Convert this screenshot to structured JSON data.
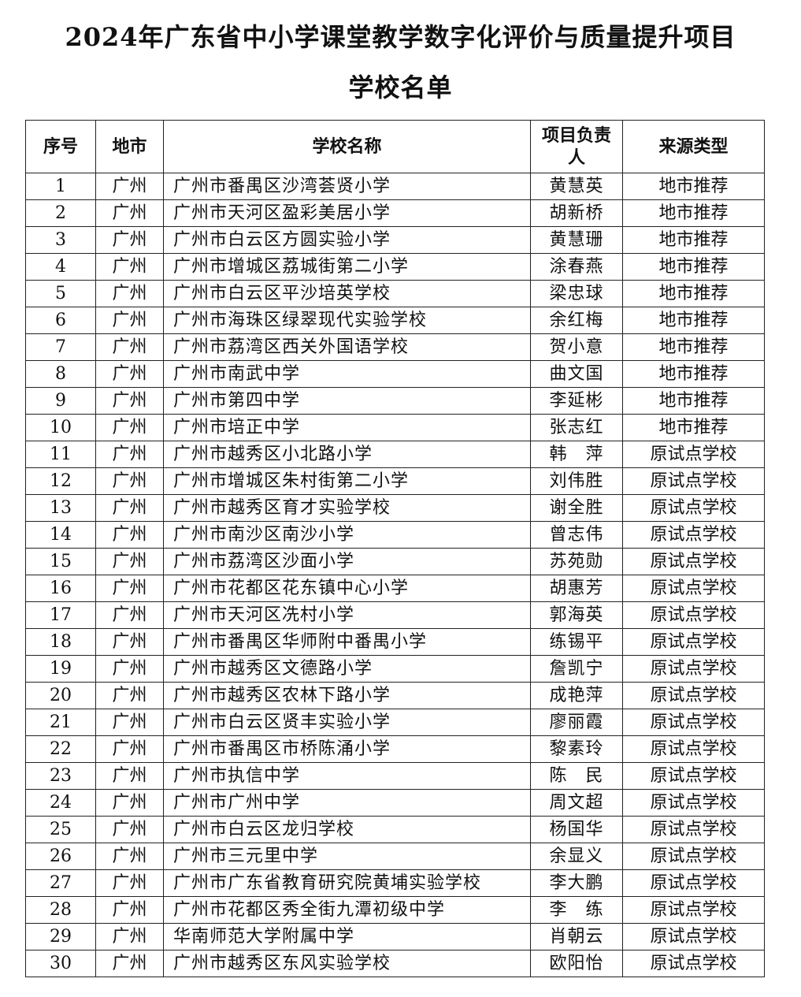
{
  "title": {
    "line1": "2024年广东省中小学课堂教学数字化评价与质量提升项目",
    "line2": "学校名单"
  },
  "table": {
    "headers": [
      "序号",
      "地市",
      "学校名称",
      "项目负责人",
      "来源类型"
    ],
    "rows": [
      [
        "1",
        "广州",
        "广州市番禺区沙湾荟贤小学",
        "黄慧英",
        "地市推荐"
      ],
      [
        "2",
        "广州",
        "广州市天河区盈彩美居小学",
        "胡新桥",
        "地市推荐"
      ],
      [
        "3",
        "广州",
        "广州市白云区方圆实验小学",
        "黄慧珊",
        "地市推荐"
      ],
      [
        "4",
        "广州",
        "广州市增城区荔城街第二小学",
        "涂春燕",
        "地市推荐"
      ],
      [
        "5",
        "广州",
        "广州市白云区平沙培英学校",
        "梁忠球",
        "地市推荐"
      ],
      [
        "6",
        "广州",
        "广州市海珠区绿翠现代实验学校",
        "余红梅",
        "地市推荐"
      ],
      [
        "7",
        "广州",
        "广州市荔湾区西关外国语学校",
        "贺小意",
        "地市推荐"
      ],
      [
        "8",
        "广州",
        "广州市南武中学",
        "曲文国",
        "地市推荐"
      ],
      [
        "9",
        "广州",
        "广州市第四中学",
        "李延彬",
        "地市推荐"
      ],
      [
        "10",
        "广州",
        "广州市培正中学",
        "张志红",
        "地市推荐"
      ],
      [
        "11",
        "广州",
        "广州市越秀区小北路小学",
        "韩　萍",
        "原试点学校"
      ],
      [
        "12",
        "广州",
        "广州市增城区朱村街第二小学",
        "刘伟胜",
        "原试点学校"
      ],
      [
        "13",
        "广州",
        "广州市越秀区育才实验学校",
        "谢全胜",
        "原试点学校"
      ],
      [
        "14",
        "广州",
        "广州市南沙区南沙小学",
        "曾志伟",
        "原试点学校"
      ],
      [
        "15",
        "广州",
        "广州市荔湾区沙面小学",
        "苏苑勋",
        "原试点学校"
      ],
      [
        "16",
        "广州",
        "广州市花都区花东镇中心小学",
        "胡惠芳",
        "原试点学校"
      ],
      [
        "17",
        "广州",
        "广州市天河区冼村小学",
        "郭海英",
        "原试点学校"
      ],
      [
        "18",
        "广州",
        "广州市番禺区华师附中番禺小学",
        "练锡平",
        "原试点学校"
      ],
      [
        "19",
        "广州",
        "广州市越秀区文德路小学",
        "詹凯宁",
        "原试点学校"
      ],
      [
        "20",
        "广州",
        "广州市越秀区农林下路小学",
        "成艳萍",
        "原试点学校"
      ],
      [
        "21",
        "广州",
        "广州市白云区贤丰实验小学",
        "廖丽霞",
        "原试点学校"
      ],
      [
        "22",
        "广州",
        "广州市番禺区市桥陈涌小学",
        "黎素玲",
        "原试点学校"
      ],
      [
        "23",
        "广州",
        "广州市执信中学",
        "陈　民",
        "原试点学校"
      ],
      [
        "24",
        "广州",
        "广州市广州中学",
        "周文超",
        "原试点学校"
      ],
      [
        "25",
        "广州",
        "广州市白云区龙归学校",
        "杨国华",
        "原试点学校"
      ],
      [
        "26",
        "广州",
        "广州市三元里中学",
        "余显义",
        "原试点学校"
      ],
      [
        "27",
        "广州",
        "广州市广东省教育研究院黄埔实验学校",
        "李大鹏",
        "原试点学校"
      ],
      [
        "28",
        "广州",
        "广州市花都区秀全街九潭初级中学",
        "李　练",
        "原试点学校"
      ],
      [
        "29",
        "广州",
        "华南师范大学附属中学",
        "肖朝云",
        "原试点学校"
      ],
      [
        "30",
        "广州",
        "广州市越秀区东风实验学校",
        "欧阳怡",
        "原试点学校"
      ]
    ]
  }
}
